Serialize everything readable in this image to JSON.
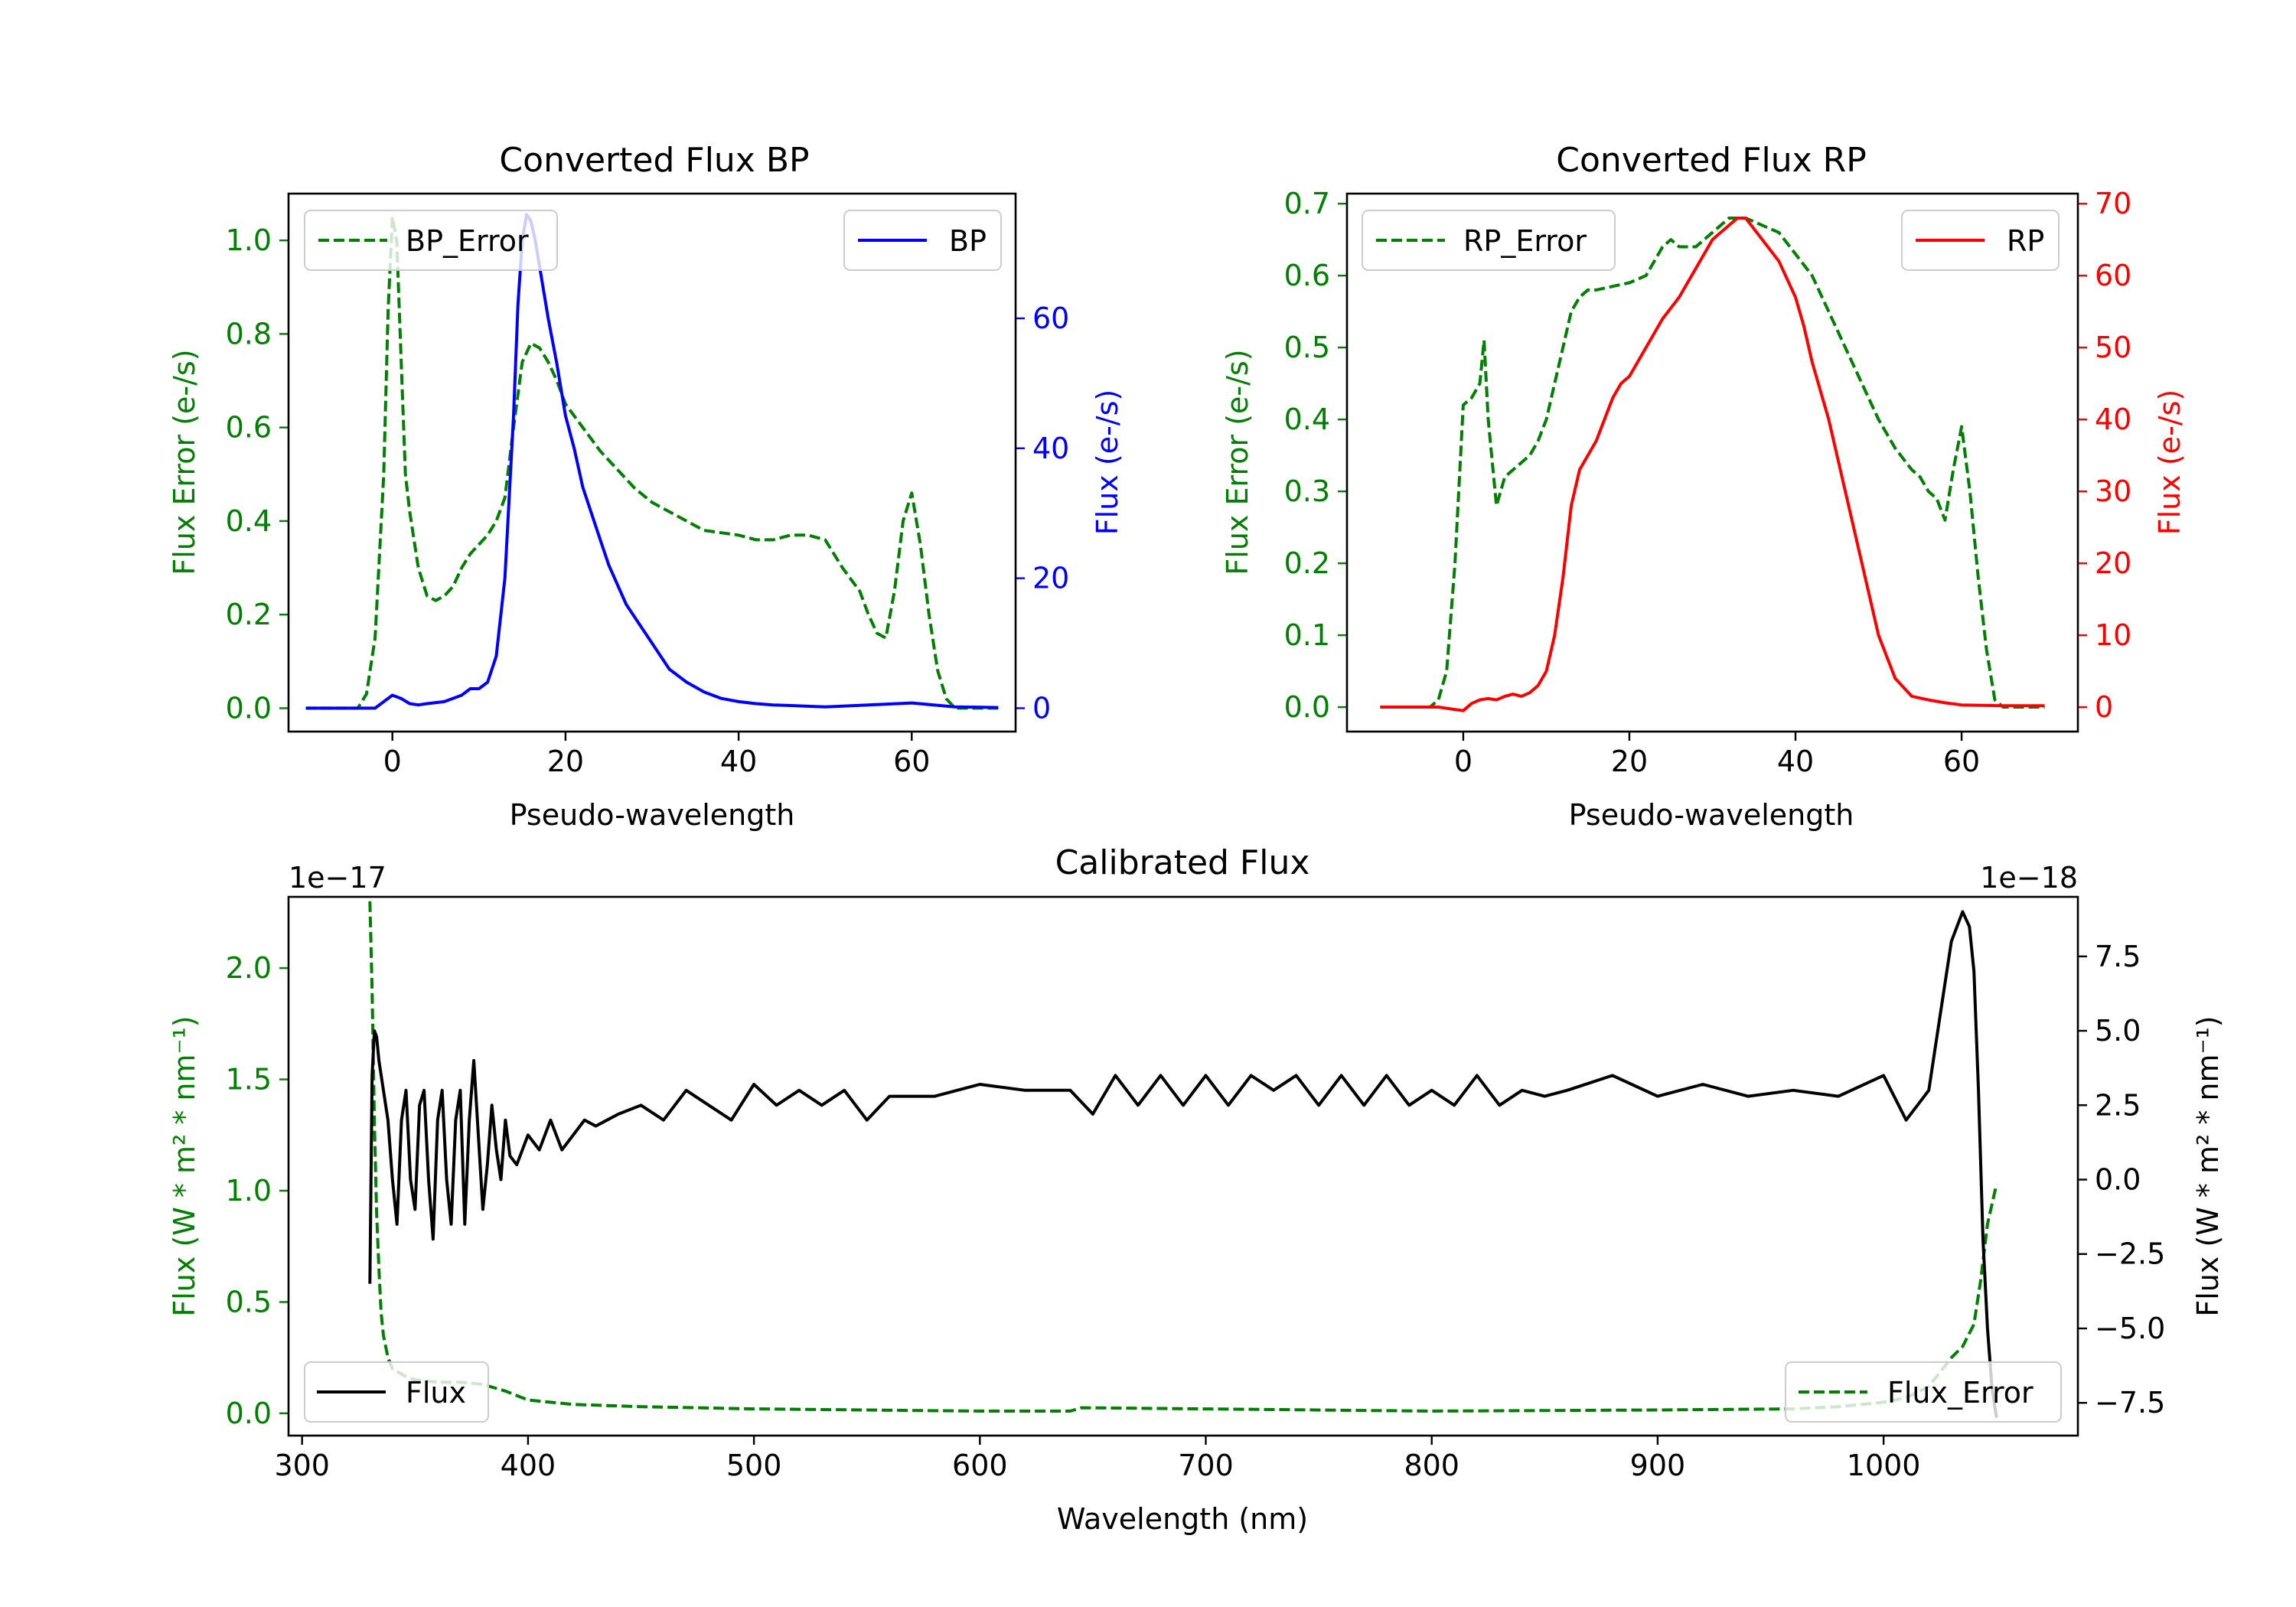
{
  "colors": {
    "green": "#008000",
    "blue": "#0000ff",
    "red": "#ff0000",
    "black": "#000000"
  },
  "chart_data": [
    {
      "id": "bp",
      "type": "line",
      "title": "Converted Flux BP",
      "xlabel": "Pseudo-wavelength",
      "ylabel_left": "Flux Error (e-/s)",
      "ylabel_right": "Flux (e-/s)",
      "xlim": [
        -12,
        72
      ],
      "ylim_left": [
        -0.05,
        1.1
      ],
      "ylim_right": [
        -3.6,
        79.2
      ],
      "xticks": [
        0,
        20,
        40,
        60
      ],
      "xtick_labels": [
        "0",
        "20",
        "40",
        "60"
      ],
      "yticks_left": [
        0.0,
        0.2,
        0.4,
        0.6,
        0.8,
        1.0
      ],
      "ytick_labels_left": [
        "0.0",
        "0.2",
        "0.4",
        "0.6",
        "0.8",
        "1.0"
      ],
      "yticks_right": [
        0,
        20,
        40,
        60
      ],
      "ytick_labels_right": [
        "0",
        "20",
        "40",
        "60"
      ],
      "legends": {
        "left_label": "BP_Error",
        "right_label": "BP"
      },
      "series": [
        {
          "name": "BP_Error",
          "axis": "left",
          "color": "green",
          "dash": true,
          "x": [
            -10,
            -4,
            -3,
            -2,
            -1,
            -0.5,
            0,
            0.5,
            1,
            1.5,
            2,
            3,
            4,
            5,
            6,
            7,
            8,
            9,
            10,
            11,
            12,
            13,
            14,
            15,
            16,
            17,
            18,
            19,
            20,
            22,
            24,
            26,
            28,
            30,
            32,
            34,
            36,
            38,
            40,
            42,
            44,
            46,
            48,
            50,
            52,
            54,
            55,
            56,
            57,
            58,
            59,
            60,
            61,
            62,
            63,
            64,
            65,
            66,
            70
          ],
          "y": [
            0.0,
            0.0,
            0.03,
            0.15,
            0.5,
            0.85,
            1.05,
            1.0,
            0.75,
            0.5,
            0.42,
            0.3,
            0.24,
            0.23,
            0.24,
            0.26,
            0.3,
            0.33,
            0.35,
            0.37,
            0.4,
            0.45,
            0.6,
            0.74,
            0.78,
            0.77,
            0.74,
            0.7,
            0.65,
            0.6,
            0.55,
            0.51,
            0.47,
            0.44,
            0.42,
            0.4,
            0.38,
            0.375,
            0.37,
            0.36,
            0.36,
            0.37,
            0.37,
            0.36,
            0.3,
            0.25,
            0.2,
            0.16,
            0.15,
            0.25,
            0.4,
            0.46,
            0.35,
            0.2,
            0.08,
            0.02,
            0.0,
            0.0,
            0.0
          ]
        },
        {
          "name": "BP",
          "axis": "right",
          "color": "blue",
          "dash": false,
          "x": [
            -10,
            -5,
            -2,
            0,
            1,
            2,
            3,
            4,
            6,
            8,
            9,
            10,
            11,
            12,
            13,
            14,
            14.5,
            15,
            15.5,
            16,
            16.5,
            17,
            18,
            19,
            20,
            21,
            22,
            23,
            24,
            25,
            26,
            27,
            28,
            29,
            30,
            31,
            32,
            33,
            34,
            36,
            38,
            40,
            42,
            44,
            46,
            48,
            50,
            55,
            60,
            65,
            70
          ],
          "y": [
            0,
            0,
            0,
            2,
            1.5,
            0.7,
            0.5,
            0.7,
            1,
            2,
            3,
            3,
            4,
            8,
            20,
            45,
            62,
            72,
            76,
            75,
            72,
            68,
            60,
            53,
            45,
            40,
            34,
            30,
            26,
            22,
            19,
            16,
            14,
            12,
            10,
            8,
            6,
            5,
            4,
            2.5,
            1.5,
            1,
            0.7,
            0.5,
            0.4,
            0.3,
            0.2,
            0.5,
            0.8,
            0.2,
            0.1
          ]
        }
      ]
    },
    {
      "id": "rp",
      "type": "line",
      "title": "Converted Flux RP",
      "xlabel": "Pseudo-wavelength",
      "ylabel_left": "Flux Error (e-/s)",
      "ylabel_right": "Flux (e-/s)",
      "xlim": [
        -14,
        74
      ],
      "ylim_left": [
        -0.034,
        0.714
      ],
      "ylim_right": [
        -3.4,
        71.4
      ],
      "xticks": [
        0,
        20,
        40,
        60
      ],
      "xtick_labels": [
        "0",
        "20",
        "40",
        "60"
      ],
      "yticks_left": [
        0.0,
        0.1,
        0.2,
        0.3,
        0.4,
        0.5,
        0.6,
        0.7
      ],
      "ytick_labels_left": [
        "0.0",
        "0.1",
        "0.2",
        "0.3",
        "0.4",
        "0.5",
        "0.6",
        "0.7"
      ],
      "yticks_right": [
        0,
        10,
        20,
        30,
        40,
        50,
        60,
        70
      ],
      "ytick_labels_right": [
        "0",
        "10",
        "20",
        "30",
        "40",
        "50",
        "60",
        "70"
      ],
      "legends": {
        "left_label": "RP_Error",
        "right_label": "RP"
      },
      "series": [
        {
          "name": "RP_Error",
          "axis": "left",
          "color": "green",
          "dash": true,
          "x": [
            -10,
            -5,
            -4,
            -3,
            -2,
            -1,
            0,
            1,
            2,
            2.5,
            3,
            4,
            5,
            6,
            7,
            8,
            9,
            10,
            11,
            12,
            13,
            14,
            15,
            16,
            18,
            20,
            22,
            24,
            25,
            26,
            28,
            30,
            32,
            34,
            36,
            38,
            40,
            42,
            44,
            46,
            48,
            50,
            52,
            54,
            55,
            56,
            57,
            58,
            59,
            60,
            61,
            62,
            63,
            64,
            65,
            70
          ],
          "y": [
            0,
            0,
            0,
            0.01,
            0.05,
            0.2,
            0.42,
            0.43,
            0.45,
            0.51,
            0.4,
            0.28,
            0.32,
            0.33,
            0.34,
            0.35,
            0.37,
            0.4,
            0.45,
            0.5,
            0.55,
            0.57,
            0.58,
            0.58,
            0.585,
            0.59,
            0.6,
            0.64,
            0.65,
            0.64,
            0.64,
            0.66,
            0.68,
            0.68,
            0.67,
            0.66,
            0.63,
            0.6,
            0.55,
            0.5,
            0.45,
            0.4,
            0.36,
            0.33,
            0.32,
            0.3,
            0.29,
            0.26,
            0.33,
            0.39,
            0.3,
            0.18,
            0.08,
            0.01,
            0.0,
            0.0
          ]
        },
        {
          "name": "RP",
          "axis": "right",
          "color": "red",
          "dash": false,
          "x": [
            -10,
            -5,
            -3,
            0,
            1,
            2,
            3,
            4,
            5,
            6,
            7,
            8,
            9,
            10,
            11,
            12,
            13,
            14,
            15,
            16,
            17,
            18,
            19,
            20,
            22,
            24,
            26,
            28,
            30,
            32,
            33,
            34,
            36,
            38,
            40,
            41,
            42,
            44,
            46,
            48,
            50,
            52,
            54,
            56,
            58,
            60,
            65,
            70
          ],
          "y": [
            0,
            0,
            0,
            -0.5,
            0.5,
            1,
            1.2,
            1,
            1.5,
            1.8,
            1.5,
            2,
            3,
            5,
            10,
            18,
            28,
            33,
            35,
            37,
            40,
            43,
            45,
            46,
            50,
            54,
            57,
            61,
            65,
            67,
            68,
            68,
            65,
            62,
            57,
            53,
            48,
            40,
            30,
            20,
            10,
            4,
            1.5,
            1,
            0.6,
            0.3,
            0.2,
            0.2
          ]
        }
      ]
    },
    {
      "id": "cal",
      "type": "line",
      "title": "Calibrated Flux",
      "xlabel": "Wavelength (nm)",
      "ylabel_left": "Flux (W * m² * nm⁻¹)",
      "ylabel_right": "Flux (W * m² * nm⁻¹)",
      "offset_left": "1e−17",
      "offset_right": "1e−18",
      "xlim": [
        294,
        1086
      ],
      "ylim_left": [
        -0.1,
        2.32
      ],
      "ylim_right": [
        -8.6,
        9.5
      ],
      "xticks": [
        300,
        400,
        500,
        600,
        700,
        800,
        900,
        1000
      ],
      "xtick_labels": [
        "300",
        "400",
        "500",
        "600",
        "700",
        "800",
        "900",
        "1000"
      ],
      "yticks_left": [
        0.0,
        0.5,
        1.0,
        1.5,
        2.0
      ],
      "ytick_labels_left": [
        "0.0",
        "0.5",
        "1.0",
        "1.5",
        "2.0"
      ],
      "yticks_right": [
        -7.5,
        -5.0,
        -2.5,
        0.0,
        2.5,
        5.0,
        7.5
      ],
      "ytick_labels_right": [
        "−7.5",
        "−5.0",
        "−2.5",
        "0.0",
        "2.5",
        "5.0",
        "7.5"
      ],
      "legends": {
        "left_label": "Flux",
        "right_label": "Flux_Error"
      },
      "series": [
        {
          "name": "Flux_Error",
          "axis": "left",
          "color": "green",
          "dash": true,
          "x": [
            330,
            331,
            332,
            333,
            334,
            335,
            336,
            338,
            340,
            345,
            350,
            360,
            370,
            380,
            390,
            400,
            420,
            450,
            500,
            600,
            640,
            645,
            700,
            800,
            900,
            960,
            980,
            1000,
            1010,
            1020,
            1030,
            1035,
            1040,
            1043,
            1046,
            1050
          ],
          "y": [
            2.3,
            1.9,
            1.3,
            0.9,
            0.65,
            0.45,
            0.35,
            0.25,
            0.2,
            0.17,
            0.15,
            0.14,
            0.14,
            0.13,
            0.1,
            0.06,
            0.04,
            0.03,
            0.02,
            0.01,
            0.01,
            0.025,
            0.02,
            0.01,
            0.015,
            0.02,
            0.03,
            0.05,
            0.07,
            0.12,
            0.25,
            0.3,
            0.4,
            0.6,
            0.85,
            1.03
          ]
        },
        {
          "name": "Flux",
          "axis": "right",
          "color": "black",
          "dash": false,
          "x": [
            330,
            331,
            332,
            333,
            334,
            336,
            338,
            340,
            342,
            344,
            346,
            348,
            350,
            352,
            354,
            356,
            358,
            360,
            362,
            364,
            366,
            368,
            370,
            372,
            374,
            376,
            378,
            380,
            382,
            384,
            386,
            388,
            390,
            392,
            395,
            400,
            405,
            410,
            415,
            420,
            425,
            430,
            435,
            440,
            450,
            460,
            470,
            480,
            490,
            500,
            510,
            520,
            530,
            540,
            550,
            560,
            580,
            600,
            620,
            640,
            650,
            660,
            670,
            680,
            690,
            700,
            710,
            720,
            730,
            740,
            750,
            760,
            770,
            780,
            790,
            800,
            810,
            820,
            830,
            840,
            850,
            860,
            880,
            900,
            920,
            940,
            960,
            980,
            1000,
            1010,
            1015,
            1020,
            1025,
            1030,
            1035,
            1038,
            1040,
            1042,
            1044,
            1046,
            1048,
            1050
          ],
          "y": [
            -3.5,
            3.5,
            5.0,
            4.8,
            4.0,
            3.0,
            2.0,
            0.0,
            -1.5,
            2.0,
            3.0,
            0.0,
            -1.0,
            2.5,
            3.0,
            0.0,
            -2.0,
            2.0,
            3.0,
            0.0,
            -1.5,
            2.0,
            3.0,
            -1.5,
            2.0,
            4.0,
            1.5,
            -1.0,
            0.5,
            2.5,
            1.0,
            0.0,
            2.0,
            0.8,
            0.5,
            1.5,
            1.0,
            2.0,
            1.0,
            1.5,
            2.0,
            1.8,
            2.0,
            2.2,
            2.5,
            2.0,
            3.0,
            2.5,
            2.0,
            3.2,
            2.5,
            3.0,
            2.5,
            3.0,
            2.0,
            2.8,
            2.8,
            3.2,
            3.0,
            3.0,
            2.2,
            3.5,
            2.5,
            3.5,
            2.5,
            3.5,
            2.5,
            3.5,
            3.0,
            3.5,
            2.5,
            3.5,
            2.5,
            3.5,
            2.5,
            3.0,
            2.5,
            3.5,
            2.5,
            3.0,
            2.8,
            3.0,
            3.5,
            2.8,
            3.2,
            2.8,
            3.0,
            2.8,
            3.5,
            2.0,
            2.5,
            3.0,
            5.5,
            8.0,
            9.0,
            8.5,
            7.0,
            3.0,
            -2.0,
            -5.0,
            -7.0,
            -8.0
          ]
        }
      ]
    }
  ]
}
